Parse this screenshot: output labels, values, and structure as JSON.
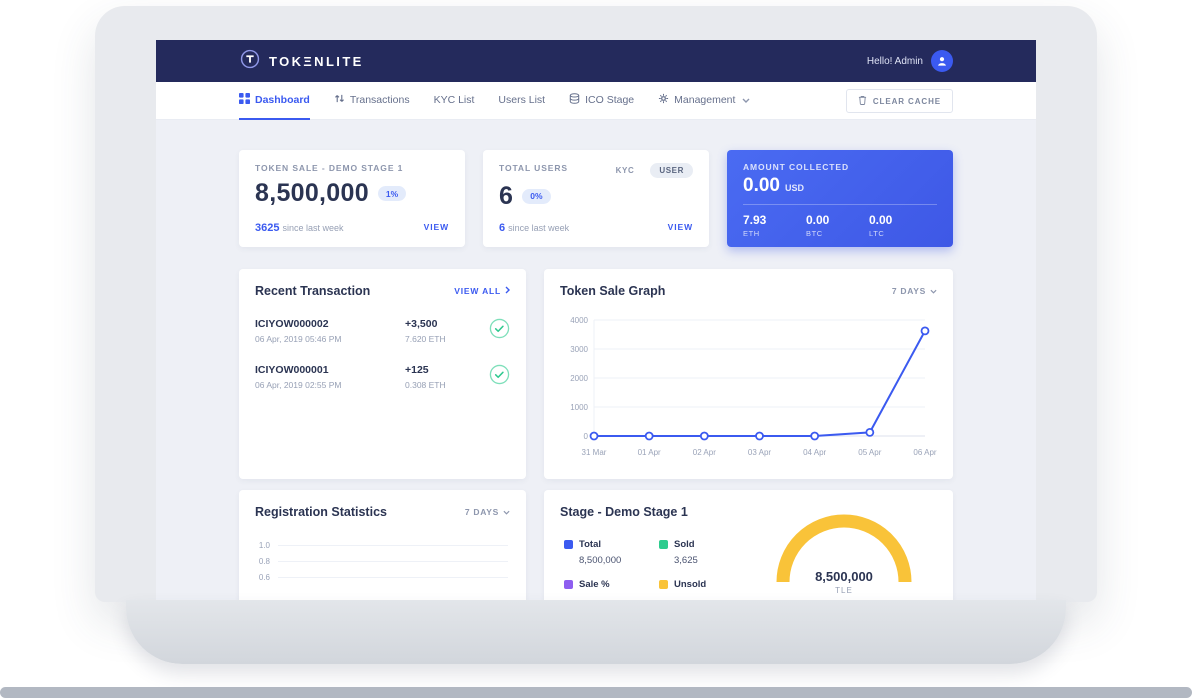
{
  "colors": {
    "accent": "#3b5af0",
    "navbar": "#242a5c",
    "blue_card": "#4468f0",
    "success": "#2fc98f",
    "gauge_yellow": "#f9c339"
  },
  "brand": {
    "wordmark_bold": "TOKΞNLITE",
    "wordmark_light": ""
  },
  "topbar": {
    "greeting": "Hello! Admin",
    "avatar_icon": "user-icon"
  },
  "nav": {
    "items": [
      {
        "label": "Dashboard",
        "icon": "grid-icon",
        "active": true
      },
      {
        "label": "Transactions",
        "icon": "transfer-arrows-icon",
        "active": false
      },
      {
        "label": "KYC List",
        "active": false
      },
      {
        "label": "Users List",
        "active": false
      },
      {
        "label": "ICO Stage",
        "icon": "database-icon",
        "active": false
      },
      {
        "label": "Management",
        "icon": "gear-icon",
        "has_dropdown": true,
        "active": false
      }
    ],
    "clear_cache": {
      "label": "CLEAR CACHE",
      "icon": "trash-icon"
    }
  },
  "cards": {
    "token_sale": {
      "title": "TOKEN SALE - DEMO STAGE 1",
      "value": "8,500,000",
      "badge": "1%",
      "delta": "3625",
      "delta_suffix": "since last week",
      "view_label": "VIEW"
    },
    "total_users": {
      "title": "TOTAL USERS",
      "toggle": [
        "KYC",
        "USER"
      ],
      "value": "6",
      "badge": "0%",
      "delta": "6",
      "delta_suffix": "since last week",
      "view_label": "VIEW"
    },
    "amount_collected": {
      "title": "AMOUNT COLLECTED",
      "value": "0.00",
      "currency": "USD",
      "breakdown": [
        {
          "value": "7.93",
          "label": "ETH"
        },
        {
          "value": "0.00",
          "label": "BTC"
        },
        {
          "value": "0.00",
          "label": "LTC"
        }
      ]
    }
  },
  "recent_transactions": {
    "title": "Recent Transaction",
    "view_all_label": "VIEW ALL",
    "items": [
      {
        "id": "ICIYOW000002",
        "date": "06 Apr, 2019 05:46 PM",
        "amount": "+3,500",
        "eth": "7.620 ETH",
        "status_icon": "check-circle-icon"
      },
      {
        "id": "ICIYOW000001",
        "date": "06 Apr, 2019 02:55 PM",
        "amount": "+125",
        "eth": "0.308 ETH",
        "status_icon": "check-circle-icon"
      }
    ]
  },
  "chart_data": [
    {
      "type": "line",
      "title": "Token Sale Graph",
      "range_label": "7 DAYS",
      "x": [
        "31 Mar",
        "01 Apr",
        "02 Apr",
        "03 Apr",
        "04 Apr",
        "05 Apr",
        "06 Apr"
      ],
      "values": [
        0,
        0,
        0,
        0,
        0,
        125,
        3625
      ],
      "ylim": [
        0,
        4000
      ],
      "yticks": [
        0,
        1000,
        2000,
        3000,
        4000
      ],
      "line_color": "#3b5af0",
      "grid": true,
      "legend_position": "none"
    },
    {
      "type": "line",
      "title": "Registration Statistics",
      "range_label": "7 DAYS",
      "yticks_visible": [
        "1.0",
        "0.8",
        "0.6"
      ],
      "grid": true
    },
    {
      "type": "gauge",
      "title": "Stage - Demo Stage 1",
      "center_value": "8,500,000",
      "center_label": "TLE",
      "arc_color": "#f9c339",
      "legend": [
        {
          "label": "Total",
          "value": "8,500,000",
          "color": "#3b5af0"
        },
        {
          "label": "Sold",
          "value": "3,625",
          "color": "#2ecc8e"
        },
        {
          "label": "Sale %",
          "value": "",
          "color": "#8e5ef0"
        },
        {
          "label": "Unsold",
          "value": "",
          "color": "#f9c339"
        }
      ]
    }
  ]
}
